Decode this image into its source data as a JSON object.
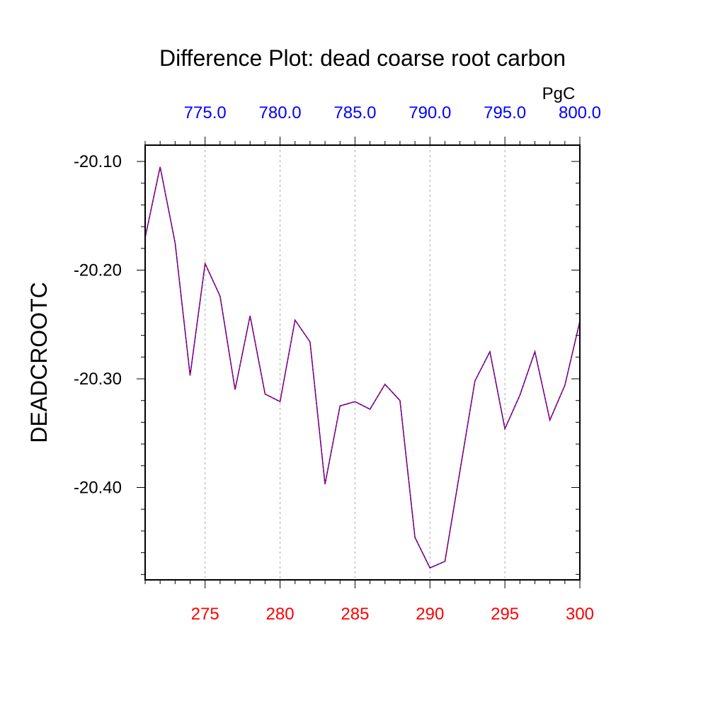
{
  "chart_data": {
    "type": "line",
    "title": "Difference Plot: dead coarse root carbon",
    "ylabel": "DEADCROOTC",
    "top_axis_units": "PgC",
    "x": [
      271,
      272,
      273,
      274,
      275,
      276,
      277,
      278,
      279,
      280,
      281,
      282,
      283,
      284,
      285,
      286,
      287,
      288,
      289,
      290,
      291,
      292,
      293,
      294,
      295,
      296,
      297,
      298,
      299,
      300
    ],
    "series": [
      {
        "name": "DEADCROOTC difference",
        "color_main": "#0000ff",
        "color_dash": "#ff0000",
        "values": [
          -20.17,
          -20.105,
          -20.175,
          -20.297,
          -20.194,
          -20.224,
          -20.31,
          -20.242,
          -20.314,
          -20.321,
          -20.246,
          -20.266,
          -20.397,
          -20.325,
          -20.321,
          -20.328,
          -20.305,
          -20.32,
          -20.446,
          -20.474,
          -20.468,
          -20.385,
          -20.302,
          -20.275,
          -20.346,
          -20.315,
          -20.275,
          -20.338,
          -20.306,
          -20.247
        ]
      }
    ],
    "xlim": [
      271,
      300
    ],
    "ylim": [
      -20.485,
      -20.085
    ],
    "bottom_ticks": [
      275,
      280,
      285,
      290,
      295,
      300
    ],
    "bottom_tick_labels": [
      "275",
      "280",
      "285",
      "290",
      "295",
      "300"
    ],
    "top_ticks": [
      275,
      280,
      285,
      290,
      295,
      300
    ],
    "top_tick_labels": [
      "775.0",
      "780.0",
      "785.0",
      "790.0",
      "795.0",
      "800.0"
    ],
    "y_ticks": [
      -20.1,
      -20.2,
      -20.3,
      -20.4
    ],
    "y_tick_labels": [
      "-20.10",
      "-20.20",
      "-20.30",
      "-20.40"
    ],
    "y_minor_step": 0.02,
    "x_minor_step": 1,
    "grid": "vertical dashed at major x ticks",
    "colors": {
      "bottom_labels": "#ff0000",
      "top_labels": "#0000ff",
      "text": "#000000",
      "grid": "#aaaaaa"
    }
  }
}
